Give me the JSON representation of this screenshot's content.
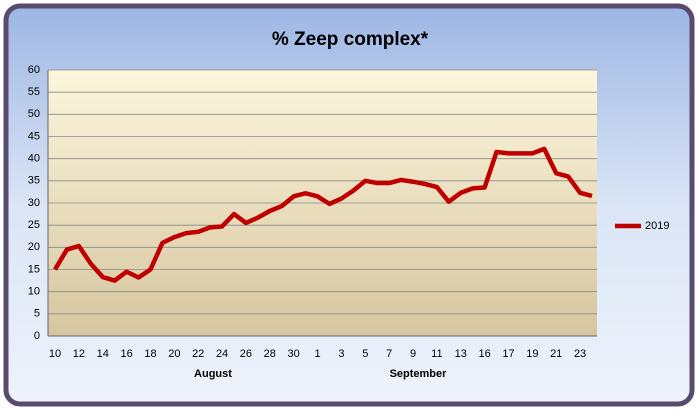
{
  "chart_data": {
    "type": "line",
    "title": "% Zeep complex*",
    "categories": [
      "10",
      null,
      "12",
      null,
      "14",
      null,
      "16",
      null,
      "18",
      null,
      "20",
      null,
      "22",
      null,
      "24",
      null,
      "26",
      null,
      "28",
      null,
      "30",
      null,
      "1",
      null,
      "3",
      null,
      "5",
      null,
      "7",
      null,
      "9",
      null,
      "11",
      null,
      "13",
      null,
      "16",
      null,
      "17",
      null,
      "19",
      null,
      "21",
      null,
      "23",
      null
    ],
    "x_group_labels": [
      "August",
      "September"
    ],
    "series": [
      {
        "name": "2019",
        "color": "#c00000",
        "values": [
          15,
          19.5,
          20.3,
          16.3,
          13.3,
          12.5,
          14.5,
          13.2,
          15,
          21,
          22.3,
          23.2,
          23.5,
          24.5,
          24.7,
          27.5,
          25.5,
          26.7,
          28.2,
          29.3,
          31.5,
          32.2,
          31.5,
          29.8,
          31,
          32.8,
          35,
          34.5,
          34.5,
          35.2,
          34.8,
          34.3,
          33.6,
          30.3,
          32.3,
          33.3,
          33.5,
          41.5,
          41.2,
          41.2,
          41.2,
          42.2,
          36.7,
          36,
          32.3,
          31.6
        ]
      }
    ],
    "ylim": [
      0,
      60
    ],
    "yticks": [
      0,
      5,
      10,
      15,
      20,
      25,
      30,
      35,
      40,
      45,
      50,
      55,
      60
    ],
    "grid": true,
    "legend": "right"
  }
}
